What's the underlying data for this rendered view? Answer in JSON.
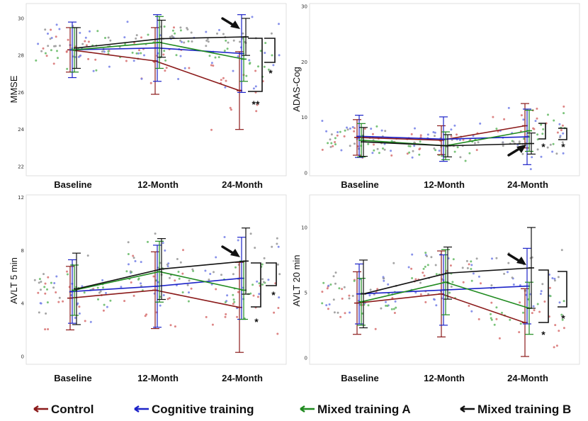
{
  "chart_data": [
    {
      "type": "line",
      "ylabel": "MMSE",
      "xlabel": "",
      "categories": [
        "Baseline",
        "12-Month",
        "24-Month"
      ],
      "ylim": [
        21.5,
        30.8
      ],
      "yticks": [
        "22",
        "24",
        "26",
        "28",
        "30"
      ],
      "series": [
        {
          "name": "Control",
          "values": [
            28.3,
            27.7,
            26.1
          ],
          "err": [
            1.2,
            1.8,
            2.1
          ]
        },
        {
          "name": "Cognitive training",
          "values": [
            28.3,
            28.4,
            28.1
          ],
          "err": [
            1.5,
            1.8,
            2.1
          ]
        },
        {
          "name": "Mixed training A",
          "values": [
            28.3,
            28.7,
            27.8
          ],
          "err": [
            1.2,
            1.4,
            1.2
          ]
        },
        {
          "name": "Mixed training B",
          "values": [
            28.4,
            28.9,
            29.0
          ],
          "err": [
            1.1,
            1.0,
            1.0
          ]
        }
      ],
      "annotations": [
        "*",
        "**"
      ]
    },
    {
      "type": "line",
      "ylabel": "ADAS-Cog",
      "xlabel": "",
      "categories": [
        "Baseline",
        "12-Month",
        "24-Month"
      ],
      "ylim": [
        -0.5,
        30.5
      ],
      "yticks": [
        "0",
        "10",
        "20",
        "30"
      ],
      "series": [
        {
          "name": "Control",
          "values": [
            6.4,
            5.9,
            8.5
          ],
          "err": [
            3.2,
            2.6,
            4.0
          ]
        },
        {
          "name": "Cognitive training",
          "values": [
            6.6,
            6.1,
            6.5
          ],
          "err": [
            3.8,
            4.0,
            5.0
          ]
        },
        {
          "name": "Mixed training A",
          "values": [
            5.9,
            4.9,
            7.6
          ],
          "err": [
            3.0,
            2.5,
            3.7
          ]
        },
        {
          "name": "Mixed training B",
          "values": [
            5.6,
            4.9,
            5.3
          ],
          "err": [
            2.6,
            2.0,
            1.9
          ]
        }
      ],
      "annotations": [
        "*",
        "*"
      ]
    },
    {
      "type": "line",
      "ylabel": "AVLT 5 min",
      "xlabel": "",
      "categories": [
        "Baseline",
        "12-Month",
        "24-Month"
      ],
      "ylim": [
        -0.6,
        12.2
      ],
      "yticks": [
        "0",
        "4",
        "8",
        "12"
      ],
      "series": [
        {
          "name": "Control",
          "values": [
            4.4,
            5.0,
            3.7
          ],
          "err": [
            2.4,
            2.9,
            3.4
          ]
        },
        {
          "name": "Cognitive training",
          "values": [
            4.9,
            5.3,
            5.9
          ],
          "err": [
            2.4,
            3.1,
            3.1
          ]
        },
        {
          "name": "Mixed training A",
          "values": [
            5.0,
            6.4,
            5.0
          ],
          "err": [
            1.9,
            2.3,
            2.2
          ]
        },
        {
          "name": "Mixed training B",
          "values": [
            5.1,
            6.6,
            7.2
          ],
          "err": [
            2.7,
            2.3,
            2.5
          ]
        }
      ],
      "annotations": [
        "*",
        "*"
      ]
    },
    {
      "type": "line",
      "ylabel": "AVLT 20 min",
      "xlabel": "",
      "categories": [
        "Baseline",
        "12-Month",
        "24-Month"
      ],
      "ylim": [
        -0.5,
        12.5
      ],
      "yticks": [
        "0",
        "5",
        "10"
      ],
      "series": [
        {
          "name": "Control",
          "values": [
            4.2,
            4.9,
            2.7
          ],
          "err": [
            2.4,
            3.3,
            2.6
          ]
        },
        {
          "name": "Cognitive training",
          "values": [
            4.9,
            5.2,
            5.5
          ],
          "err": [
            2.3,
            2.7,
            2.9
          ]
        },
        {
          "name": "Mixed training A",
          "values": [
            4.3,
            5.8,
            3.8
          ],
          "err": [
            1.8,
            2.5,
            2.0
          ]
        },
        {
          "name": "Mixed training B",
          "values": [
            4.9,
            6.5,
            6.9
          ],
          "err": [
            2.6,
            2.0,
            3.1
          ]
        }
      ],
      "annotations": [
        "*",
        "*"
      ]
    }
  ],
  "legend": [
    {
      "label": "Control",
      "color": "#8b1a1a"
    },
    {
      "label": "Cognitive training",
      "color": "#1c23c8"
    },
    {
      "label": "Mixed training A",
      "color": "#1f8a1f"
    },
    {
      "label": "Mixed training B",
      "color": "#111111"
    }
  ],
  "scatter_colors": [
    "#d97878",
    "#7b86e8",
    "#6cbd6c",
    "#9b9b9b"
  ]
}
